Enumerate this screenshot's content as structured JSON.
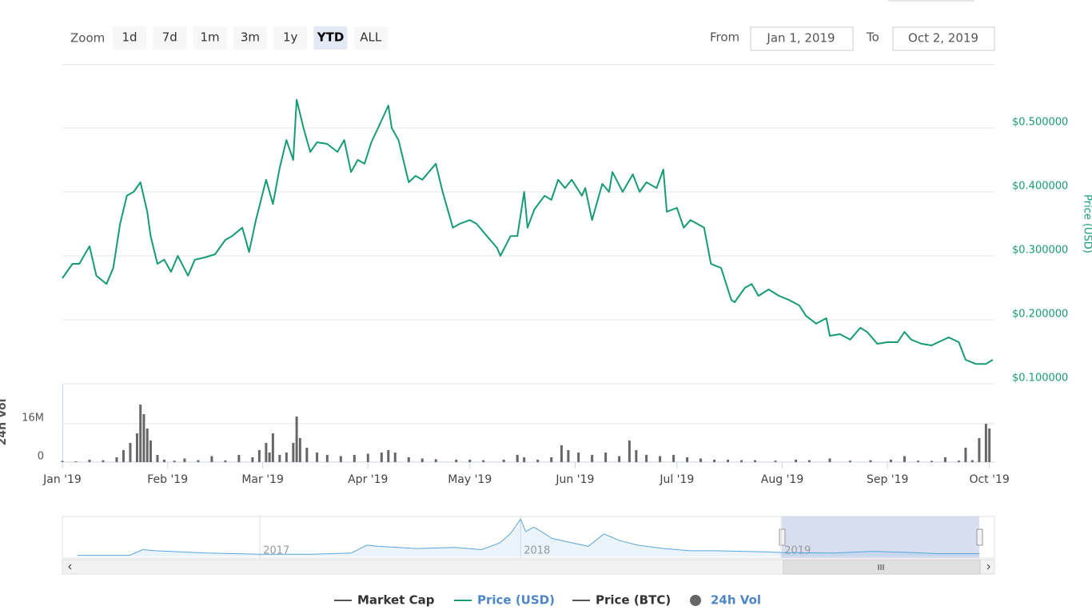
{
  "controls": {
    "zoom_label": "Zoom",
    "zoom_buttons": [
      "1d",
      "7d",
      "1m",
      "3m",
      "1y",
      "YTD",
      "ALL"
    ],
    "selected": "YTD",
    "from_label": "From",
    "from_value": "Jan 1, 2019",
    "to_label": "To",
    "to_value": "Oct 2, 2019"
  },
  "chart_data": [
    {
      "type": "line",
      "xlim": [
        0,
        274.5
      ],
      "ylim": [
        0.1,
        0.6
      ],
      "grid": true,
      "ylabel": "Price (USD)",
      "yticks": [
        {
          "value": 0.1,
          "label": "$0.100000"
        },
        {
          "value": 0.2,
          "label": "$0.200000"
        },
        {
          "value": 0.3,
          "label": "$0.300000"
        },
        {
          "value": 0.4,
          "label": "$0.400000"
        },
        {
          "value": 0.5,
          "label": "$0.500000"
        }
      ],
      "x": [
        0,
        3,
        5,
        8,
        10,
        13,
        15,
        17,
        19,
        21,
        23,
        25,
        26,
        28,
        30,
        32,
        34,
        37,
        39,
        42,
        45,
        48,
        50,
        53,
        55,
        57,
        60,
        62,
        64,
        66,
        68,
        69,
        71,
        73,
        75,
        78,
        81,
        83,
        85,
        87,
        89,
        91,
        93,
        96,
        97,
        99,
        102,
        104,
        106,
        110,
        112,
        115,
        117,
        120,
        122,
        125,
        128,
        129,
        132,
        134,
        136,
        137,
        139,
        142,
        144,
        146,
        148,
        150,
        153,
        154,
        156,
        159,
        161,
        162,
        165,
        168,
        170,
        172,
        175,
        177,
        178,
        181,
        183,
        185,
        189,
        191,
        194,
        197,
        198,
        201,
        203,
        205,
        208,
        211,
        214,
        217,
        219,
        222,
        225,
        226,
        229,
        232,
        235,
        237,
        240,
        243,
        246,
        248,
        250,
        253,
        256,
        258,
        261,
        264,
        266,
        269,
        272,
        274
      ],
      "series": [
        {
          "name": "Price (USD)",
          "color": "#169b74",
          "legend_color": "#4f86c6",
          "values": [
            0.265,
            0.2875,
            0.2875,
            0.315,
            0.269,
            0.256,
            0.281,
            0.35,
            0.394,
            0.4,
            0.415,
            0.369,
            0.331,
            0.2875,
            0.294,
            0.275,
            0.3,
            0.269,
            0.294,
            0.2975,
            0.3025,
            0.325,
            0.331,
            0.344,
            0.306,
            0.356,
            0.419,
            0.381,
            0.4375,
            0.481,
            0.45,
            0.544,
            0.5,
            0.4625,
            0.4775,
            0.475,
            0.4625,
            0.481,
            0.431,
            0.45,
            0.444,
            0.4775,
            0.5,
            0.535,
            0.5,
            0.481,
            0.415,
            0.425,
            0.419,
            0.444,
            0.4,
            0.344,
            0.35,
            0.356,
            0.35,
            0.331,
            0.3125,
            0.3,
            0.331,
            0.331,
            0.4,
            0.344,
            0.3725,
            0.394,
            0.3875,
            0.419,
            0.406,
            0.419,
            0.394,
            0.406,
            0.356,
            0.4125,
            0.4,
            0.431,
            0.4,
            0.4275,
            0.4,
            0.415,
            0.406,
            0.435,
            0.369,
            0.375,
            0.344,
            0.356,
            0.344,
            0.2875,
            0.281,
            0.231,
            0.2275,
            0.25,
            0.256,
            0.2375,
            0.2475,
            0.2375,
            0.231,
            0.2225,
            0.206,
            0.194,
            0.2025,
            0.175,
            0.1775,
            0.169,
            0.1875,
            0.181,
            0.1625,
            0.165,
            0.165,
            0.181,
            0.169,
            0.1625,
            0.16,
            0.165,
            0.1725,
            0.165,
            0.1375,
            0.131,
            0.131,
            0.1375
          ]
        }
      ],
      "hidden_series": [
        {
          "name": "Market Cap",
          "color": "#555555",
          "legend_color": "#333333"
        },
        {
          "name": "Price (BTC)",
          "color": "#555555",
          "legend_color": "#333333"
        }
      ]
    },
    {
      "type": "bar",
      "xlim": [
        0,
        274.5
      ],
      "ylim": [
        0,
        32.7
      ],
      "grid": true,
      "ylabel": "24h Vol",
      "yticks": [
        0,
        {
          "value": 16,
          "label": "16M"
        }
      ],
      "xticks": [
        {
          "value": 0,
          "label": "Jan '19"
        },
        {
          "value": 31,
          "label": "Feb '19"
        },
        {
          "value": 59,
          "label": "Mar '19"
        },
        {
          "value": 90,
          "label": "Apr '19"
        },
        {
          "value": 120,
          "label": "May '19"
        },
        {
          "value": 151,
          "label": "Jun '19"
        },
        {
          "value": 181,
          "label": "Jul '19"
        },
        {
          "value": 212,
          "label": "Aug '19"
        },
        {
          "value": 243,
          "label": "Sep '19"
        },
        {
          "value": 273,
          "label": "Oct '19"
        }
      ],
      "x": [
        0,
        4,
        8,
        12,
        16,
        18,
        20,
        22,
        23,
        24,
        25,
        26,
        28,
        30,
        33,
        36,
        40,
        44,
        48,
        52,
        56,
        58,
        60,
        61,
        62,
        64,
        66,
        68,
        69,
        70,
        72,
        75,
        78,
        82,
        86,
        90,
        94,
        96,
        98,
        102,
        106,
        110,
        116,
        120,
        124,
        130,
        134,
        136,
        140,
        144,
        147,
        149,
        152,
        156,
        160,
        164,
        167,
        169,
        172,
        176,
        180,
        184,
        188,
        192,
        196,
        200,
        204,
        210,
        216,
        220,
        226,
        232,
        238,
        244,
        248,
        252,
        256,
        260,
        264,
        266,
        268,
        270,
        272,
        273
      ],
      "series": [
        {
          "name": "24h Vol",
          "color": "#666666",
          "legend_color": "#4f86c6",
          "values": [
            0.5,
            0.3,
            1,
            0.8,
            2,
            5,
            8,
            12,
            24,
            20,
            14,
            9,
            3,
            1,
            0.6,
            1.5,
            0.8,
            2.5,
            0.7,
            3,
            2,
            5,
            8,
            4,
            12,
            3,
            4,
            8,
            19,
            10,
            6,
            4,
            3,
            2.5,
            3,
            3.5,
            4,
            5,
            4,
            2,
            1.5,
            1.2,
            1,
            1,
            0.8,
            1,
            3,
            2,
            1,
            2,
            7,
            5,
            4,
            3,
            4,
            2.5,
            9,
            5,
            3,
            2.5,
            3,
            2,
            1.5,
            1,
            1,
            0.8,
            0.8,
            0.6,
            1,
            0.8,
            1.5,
            0.6,
            0.8,
            1,
            2.5,
            0.6,
            0.5,
            2,
            0.6,
            6,
            0.8,
            10,
            16,
            14
          ]
        }
      ]
    },
    {
      "type": "area",
      "xlim": [
        2016.3,
        2019.76
      ],
      "ylim": [
        0,
        3.4
      ],
      "xticks": [
        2017,
        2018,
        2019
      ],
      "x": [
        2016.3,
        2016.5,
        2016.55,
        2016.6,
        2016.8,
        2017,
        2017.2,
        2017.35,
        2017.41,
        2017.45,
        2017.6,
        2017.75,
        2017.85,
        2017.92,
        2017.96,
        2018,
        2018.02,
        2018.05,
        2018.08,
        2018.12,
        2018.2,
        2018.26,
        2018.32,
        2018.38,
        2018.45,
        2018.55,
        2018.65,
        2018.75,
        2018.85,
        2018.95,
        2019,
        2019.2,
        2019.35,
        2019.5,
        2019.6,
        2019.76
      ],
      "series": [
        {
          "color": "#5aa6dc",
          "values": [
            0.1,
            0.1,
            0.6,
            0.5,
            0.3,
            0.2,
            0.2,
            0.3,
            1.0,
            0.9,
            0.7,
            0.8,
            0.6,
            1.2,
            2.0,
            3.3,
            2.2,
            2.6,
            2.2,
            1.6,
            1.2,
            0.9,
            2.0,
            1.4,
            1.0,
            0.7,
            0.5,
            0.5,
            0.45,
            0.4,
            0.35,
            0.3,
            0.45,
            0.35,
            0.25,
            0.25
          ]
        }
      ]
    }
  ]
}
